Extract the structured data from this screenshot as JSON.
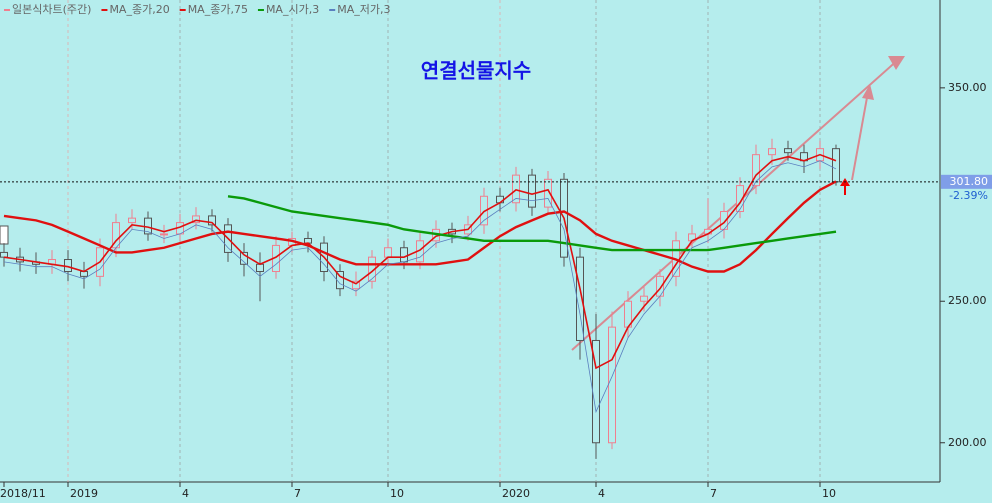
{
  "chart_data": {
    "type": "candlestick",
    "title": "연결선물지수",
    "candle_name": "일본식차트(주간)",
    "candle_color": {
      "up": "#f07f8f",
      "down": "#555555"
    },
    "log_scale": true,
    "categories": [
      "2018/11",
      null,
      null,
      null,
      "2019",
      null,
      null,
      null,
      null,
      null,
      null,
      "4",
      null,
      null,
      null,
      null,
      null,
      null,
      "7",
      null,
      null,
      null,
      null,
      null,
      "10",
      null,
      null,
      null,
      null,
      null,
      null,
      "2020",
      null,
      null,
      null,
      null,
      null,
      "4",
      null,
      null,
      null,
      null,
      null,
      null,
      "7",
      null,
      null,
      null,
      null,
      null,
      null,
      "10",
      null
    ],
    "open": [
      270,
      268,
      266,
      265,
      267,
      262,
      260,
      272,
      283,
      285,
      278,
      278,
      283,
      286,
      282,
      270,
      265,
      262,
      273,
      276,
      274,
      262,
      255,
      258,
      268,
      272,
      266,
      275,
      280,
      278,
      282,
      295,
      292,
      305,
      290,
      303,
      268,
      235,
      200,
      240,
      250,
      252,
      260,
      275,
      278,
      280,
      288,
      300,
      315,
      318,
      316,
      312,
      318
    ],
    "high": [
      274,
      272,
      270,
      271,
      271,
      266,
      276,
      287,
      289,
      288,
      282,
      287,
      290,
      289,
      285,
      274,
      270,
      277,
      279,
      279,
      277,
      265,
      262,
      271,
      276,
      275,
      279,
      284,
      283,
      286,
      299,
      299,
      309,
      308,
      307,
      306,
      272,
      245,
      246,
      254,
      256,
      263,
      279,
      282,
      294,
      292,
      304,
      320,
      323,
      322,
      320,
      322,
      320
    ],
    "low": [
      264,
      262,
      261,
      261,
      258,
      255,
      256,
      268,
      280,
      275,
      274,
      275,
      280,
      279,
      266,
      260,
      250,
      259,
      270,
      270,
      258,
      252,
      252,
      255,
      265,
      263,
      263,
      272,
      274,
      275,
      278,
      288,
      288,
      286,
      287,
      264,
      228,
      195,
      198,
      236,
      246,
      248,
      256,
      272,
      274,
      276,
      285,
      296,
      310,
      312,
      306,
      308,
      300
    ],
    "close": [
      268,
      266,
      265,
      267,
      262,
      260,
      272,
      283,
      285,
      278,
      278,
      283,
      286,
      282,
      270,
      265,
      262,
      273,
      276,
      274,
      262,
      255,
      258,
      268,
      272,
      266,
      275,
      280,
      278,
      282,
      295,
      292,
      305,
      290,
      303,
      268,
      235,
      200,
      240,
      250,
      252,
      260,
      275,
      278,
      280,
      288,
      300,
      315,
      318,
      316,
      312,
      318,
      301.8
    ],
    "series": [
      {
        "name": "MA_종가,20",
        "color": "#e01010",
        "width": 1.6,
        "values": [
          268,
          267,
          266,
          265,
          264,
          262,
          266,
          275,
          282,
          281,
          279,
          281,
          284,
          283,
          276,
          269,
          265,
          268,
          273,
          274,
          268,
          260,
          257,
          262,
          268,
          268,
          271,
          277,
          279,
          280,
          288,
          292,
          298,
          296,
          298,
          285,
          255,
          225,
          228,
          240,
          248,
          255,
          265,
          275,
          278,
          283,
          292,
          305,
          312,
          314,
          312,
          315,
          312
        ]
      },
      {
        "name": "MA_종가,75",
        "color": "#e01010",
        "width": 2.4,
        "values": [
          286,
          285,
          284,
          282,
          279,
          276,
          273,
          270,
          270,
          271,
          272,
          274,
          276,
          278,
          279,
          278,
          277,
          276,
          275,
          273,
          270,
          267,
          265,
          265,
          265,
          265,
          265,
          265,
          266,
          267,
          272,
          277,
          281,
          284,
          287,
          288,
          284,
          278,
          275,
          273,
          271,
          269,
          267,
          264,
          262,
          262,
          265,
          271,
          278,
          285,
          292,
          298,
          302
        ]
      },
      {
        "name": "MA_시가,3",
        "color": "#0a9a0a",
        "width": 2.4,
        "values": [
          null,
          null,
          null,
          null,
          null,
          null,
          null,
          null,
          null,
          null,
          null,
          null,
          null,
          null,
          295,
          294,
          292,
          290,
          288,
          287,
          286,
          285,
          284,
          283,
          282,
          280,
          279,
          278,
          277,
          276,
          275,
          275,
          275,
          275,
          275,
          274,
          273,
          272,
          271,
          271,
          271,
          271,
          271,
          271,
          271,
          272,
          273,
          274,
          275,
          276,
          277,
          278,
          279
        ]
      },
      {
        "name": "MA_저가,3",
        "color": "#5a7fbf",
        "width": 0.8,
        "values": [
          266,
          265,
          264,
          264,
          261,
          259,
          263,
          272,
          280,
          279,
          276,
          278,
          282,
          280,
          272,
          266,
          260,
          265,
          271,
          272,
          265,
          257,
          254,
          259,
          265,
          266,
          268,
          274,
          276,
          277,
          284,
          289,
          294,
          293,
          294,
          280,
          245,
          210,
          222,
          236,
          245,
          252,
          262,
          272,
          275,
          280,
          289,
          302,
          309,
          311,
          309,
          312,
          308
        ]
      }
    ],
    "ylim": [
      188,
      402
    ],
    "yticks": [
      {
        "value": 200,
        "label": "200.00"
      },
      {
        "value": 250,
        "label": "250.00"
      },
      {
        "value": 350,
        "label": "350.00"
      }
    ],
    "current": {
      "value": 301.8,
      "label": "301.80"
    },
    "change_label": "-2.39%"
  }
}
